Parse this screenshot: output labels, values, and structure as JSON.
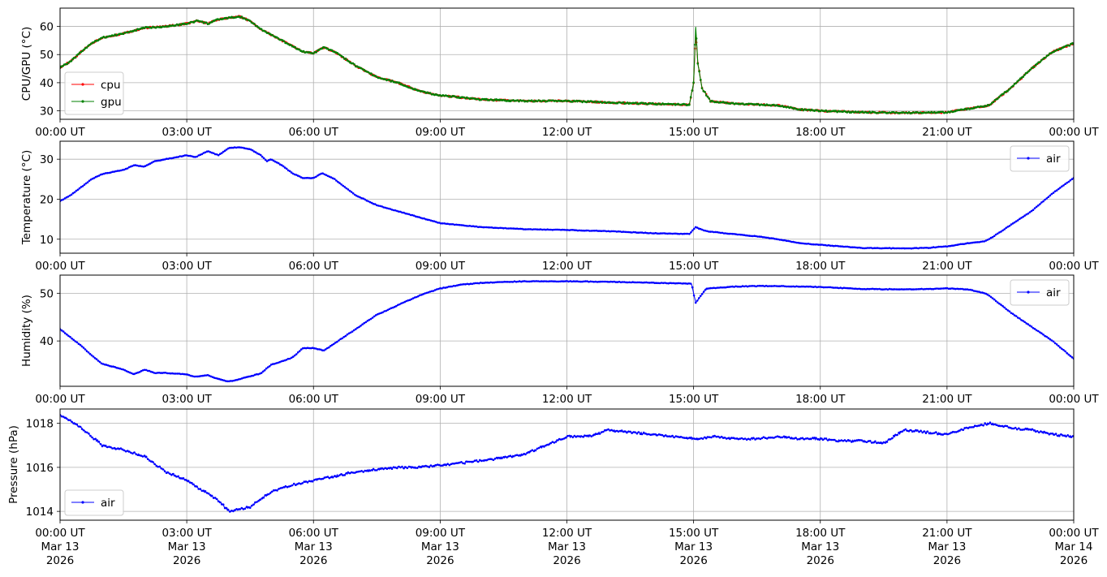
{
  "chart_data": [
    {
      "type": "line",
      "x_unit": "UTC hours since 2026-03-13 00:00",
      "xlim": [
        0,
        24
      ],
      "ylabel": "CPU/GPU (°C)",
      "ylim": [
        27,
        66.5
      ],
      "yticks": [
        30,
        40,
        50,
        60
      ],
      "grid": true,
      "legend": {
        "position": "lower-left",
        "entries": [
          "cpu",
          "gpu"
        ]
      },
      "series": [
        {
          "name": "cpu",
          "color": "#ff0000",
          "points": [
            [
              0,
              45.5
            ],
            [
              0.25,
              47.5
            ],
            [
              0.5,
              51
            ],
            [
              0.75,
              54
            ],
            [
              1,
              56
            ],
            [
              1.5,
              57.5
            ],
            [
              2,
              59.5
            ],
            [
              2.5,
              60
            ],
            [
              3,
              61
            ],
            [
              3.25,
              62
            ],
            [
              3.5,
              61
            ],
            [
              3.75,
              62.5
            ],
            [
              4,
              63
            ],
            [
              4.25,
              63.5
            ],
            [
              4.5,
              62
            ],
            [
              4.75,
              59
            ],
            [
              5,
              57
            ],
            [
              5.5,
              53
            ],
            [
              5.75,
              51
            ],
            [
              6,
              50.5
            ],
            [
              6.25,
              52.5
            ],
            [
              6.5,
              51
            ],
            [
              7,
              46
            ],
            [
              7.5,
              42
            ],
            [
              8,
              40
            ],
            [
              8.5,
              37
            ],
            [
              9,
              35.5
            ],
            [
              10,
              34
            ],
            [
              11,
              33.5
            ],
            [
              12,
              33.5
            ],
            [
              13,
              33
            ],
            [
              14,
              32.5
            ],
            [
              14.9,
              32.2
            ],
            [
              15,
              40
            ],
            [
              15.05,
              58
            ],
            [
              15.1,
              47
            ],
            [
              15.2,
              38
            ],
            [
              15.4,
              33.5
            ],
            [
              16,
              32.5
            ],
            [
              17,
              32
            ],
            [
              17.5,
              30.5
            ],
            [
              18,
              30
            ],
            [
              19,
              29.5
            ],
            [
              20,
              29.3
            ],
            [
              21,
              29.5
            ],
            [
              22,
              32
            ],
            [
              22.5,
              38
            ],
            [
              23,
              45
            ],
            [
              23.5,
              51
            ],
            [
              24,
              54
            ]
          ]
        },
        {
          "name": "gpu",
          "color": "#008000",
          "points": [
            [
              0,
              45.5
            ],
            [
              0.25,
              47.5
            ],
            [
              0.5,
              51
            ],
            [
              0.75,
              54
            ],
            [
              1,
              56
            ],
            [
              1.5,
              57.5
            ],
            [
              2,
              59.5
            ],
            [
              2.5,
              60
            ],
            [
              3,
              61
            ],
            [
              3.25,
              62
            ],
            [
              3.5,
              61
            ],
            [
              3.75,
              62.5
            ],
            [
              4,
              63
            ],
            [
              4.25,
              63.5
            ],
            [
              4.5,
              62
            ],
            [
              4.75,
              59
            ],
            [
              5,
              57
            ],
            [
              5.5,
              53
            ],
            [
              5.75,
              51
            ],
            [
              6,
              50.5
            ],
            [
              6.25,
              52.5
            ],
            [
              6.5,
              51
            ],
            [
              7,
              46
            ],
            [
              7.5,
              42
            ],
            [
              8,
              40
            ],
            [
              8.5,
              37
            ],
            [
              9,
              35.5
            ],
            [
              10,
              34
            ],
            [
              11,
              33.5
            ],
            [
              12,
              33.5
            ],
            [
              13,
              33
            ],
            [
              14,
              32.5
            ],
            [
              14.9,
              32.2
            ],
            [
              15,
              40
            ],
            [
              15.05,
              60
            ],
            [
              15.1,
              47
            ],
            [
              15.2,
              38
            ],
            [
              15.4,
              33.5
            ],
            [
              16,
              32.5
            ],
            [
              17,
              32
            ],
            [
              17.5,
              30.5
            ],
            [
              18,
              30
            ],
            [
              19,
              29.5
            ],
            [
              20,
              29.3
            ],
            [
              21,
              29.5
            ],
            [
              22,
              32
            ],
            [
              22.5,
              38
            ],
            [
              23,
              45
            ],
            [
              23.5,
              51
            ],
            [
              24,
              54
            ]
          ]
        }
      ]
    },
    {
      "type": "line",
      "x_unit": "UTC hours since 2026-03-13 00:00",
      "xlim": [
        0,
        24
      ],
      "ylabel": "Temperature (°C)",
      "ylim": [
        6.5,
        34.5
      ],
      "yticks": [
        10,
        20,
        30
      ],
      "grid": true,
      "legend": {
        "position": "upper-right",
        "entries": [
          "air"
        ]
      },
      "series": [
        {
          "name": "air",
          "color": "#0000ff",
          "points": [
            [
              0,
              19.5
            ],
            [
              0.25,
              21
            ],
            [
              0.5,
              23
            ],
            [
              0.75,
              25
            ],
            [
              1,
              26.3
            ],
            [
              1.5,
              27.3
            ],
            [
              1.75,
              28.5
            ],
            [
              2,
              28.2
            ],
            [
              2.25,
              29.5
            ],
            [
              2.5,
              30
            ],
            [
              3,
              31
            ],
            [
              3.2,
              30.5
            ],
            [
              3.5,
              32
            ],
            [
              3.75,
              31
            ],
            [
              4,
              32.8
            ],
            [
              4.25,
              33
            ],
            [
              4.5,
              32.5
            ],
            [
              4.75,
              31
            ],
            [
              4.9,
              29.5
            ],
            [
              5,
              30
            ],
            [
              5.25,
              28.5
            ],
            [
              5.5,
              26.5
            ],
            [
              5.75,
              25.3
            ],
            [
              6,
              25.3
            ],
            [
              6.2,
              26.5
            ],
            [
              6.5,
              25
            ],
            [
              7,
              21
            ],
            [
              7.5,
              18.5
            ],
            [
              8,
              17
            ],
            [
              8.5,
              15.5
            ],
            [
              9,
              14
            ],
            [
              10,
              13
            ],
            [
              11,
              12.5
            ],
            [
              12,
              12.3
            ],
            [
              13,
              12
            ],
            [
              14,
              11.5
            ],
            [
              14.9,
              11.3
            ],
            [
              15.05,
              13
            ],
            [
              15.3,
              12
            ],
            [
              16,
              11.2
            ],
            [
              16.5,
              10.7
            ],
            [
              17,
              10
            ],
            [
              17.5,
              9
            ],
            [
              18,
              8.6
            ],
            [
              19,
              7.8
            ],
            [
              20,
              7.7
            ],
            [
              20.5,
              7.8
            ],
            [
              21,
              8.2
            ],
            [
              21.5,
              9
            ],
            [
              21.9,
              9.5
            ],
            [
              22,
              10
            ],
            [
              22.5,
              13.5
            ],
            [
              23,
              17
            ],
            [
              23.5,
              21.5
            ],
            [
              24,
              25.3
            ]
          ]
        }
      ]
    },
    {
      "type": "line",
      "x_unit": "UTC hours since 2026-03-13 00:00",
      "xlim": [
        0,
        24
      ],
      "ylabel": "Humidity (%)",
      "ylim": [
        30.5,
        53.8
      ],
      "yticks": [
        40,
        50
      ],
      "grid": true,
      "legend": {
        "position": "upper-right",
        "entries": [
          "air"
        ]
      },
      "series": [
        {
          "name": "air",
          "color": "#0000ff",
          "points": [
            [
              0,
              42.5
            ],
            [
              0.5,
              39
            ],
            [
              0.75,
              37
            ],
            [
              1,
              35.2
            ],
            [
              1.5,
              34
            ],
            [
              1.75,
              33
            ],
            [
              2,
              34
            ],
            [
              2.25,
              33.3
            ],
            [
              2.5,
              33.3
            ],
            [
              3,
              33
            ],
            [
              3.2,
              32.5
            ],
            [
              3.5,
              32.8
            ],
            [
              3.75,
              32
            ],
            [
              4,
              31.5
            ],
            [
              4.25,
              32
            ],
            [
              4.5,
              32.6
            ],
            [
              4.75,
              33.2
            ],
            [
              5,
              35
            ],
            [
              5.5,
              36.5
            ],
            [
              5.75,
              38.5
            ],
            [
              6,
              38.5
            ],
            [
              6.25,
              38
            ],
            [
              6.5,
              39.5
            ],
            [
              7,
              42.5
            ],
            [
              7.5,
              45.5
            ],
            [
              8,
              47.5
            ],
            [
              8.5,
              49.5
            ],
            [
              9,
              51
            ],
            [
              9.5,
              51.8
            ],
            [
              10,
              52.2
            ],
            [
              11,
              52.5
            ],
            [
              12,
              52.5
            ],
            [
              13,
              52.4
            ],
            [
              14,
              52.2
            ],
            [
              14.95,
              52
            ],
            [
              15.05,
              48
            ],
            [
              15.3,
              51
            ],
            [
              16,
              51.4
            ],
            [
              16.5,
              51.5
            ],
            [
              17,
              51.5
            ],
            [
              18,
              51.3
            ],
            [
              19,
              50.9
            ],
            [
              20,
              50.8
            ],
            [
              21,
              51
            ],
            [
              21.5,
              50.8
            ],
            [
              21.9,
              50
            ],
            [
              22,
              49.5
            ],
            [
              22.5,
              46
            ],
            [
              23,
              43
            ],
            [
              23.5,
              40
            ],
            [
              24,
              36.3
            ]
          ]
        }
      ]
    },
    {
      "type": "line",
      "x_unit": "UTC hours since 2026-03-13 00:00",
      "xlim": [
        0,
        24
      ],
      "ylabel": "Pressure (hPa)",
      "ylim": [
        1013.6,
        1018.65
      ],
      "yticks": [
        1014,
        1016,
        1018
      ],
      "grid": true,
      "legend": {
        "position": "lower-left",
        "entries": [
          "air"
        ]
      },
      "series": [
        {
          "name": "air",
          "color": "#0000ff",
          "points": [
            [
              0,
              1018.4
            ],
            [
              0.5,
              1017.8
            ],
            [
              1,
              1017
            ],
            [
              1.5,
              1016.8
            ],
            [
              2,
              1016.5
            ],
            [
              2.5,
              1015.8
            ],
            [
              3,
              1015.4
            ],
            [
              3.5,
              1014.8
            ],
            [
              3.75,
              1014.5
            ],
            [
              4,
              1014
            ],
            [
              4.5,
              1014.2
            ],
            [
              5,
              1014.9
            ],
            [
              5.5,
              1015.2
            ],
            [
              6,
              1015.4
            ],
            [
              7,
              1015.8
            ],
            [
              8,
              1016
            ],
            [
              8.5,
              1016
            ],
            [
              9,
              1016.1
            ],
            [
              10,
              1016.3
            ],
            [
              11,
              1016.6
            ],
            [
              11.5,
              1017
            ],
            [
              12,
              1017.4
            ],
            [
              12.5,
              1017.4
            ],
            [
              13,
              1017.7
            ],
            [
              14,
              1017.5
            ],
            [
              14.5,
              1017.4
            ],
            [
              15,
              1017.3
            ],
            [
              15.5,
              1017.4
            ],
            [
              16,
              1017.3
            ],
            [
              16.5,
              1017.3
            ],
            [
              17,
              1017.4
            ],
            [
              17.5,
              1017.3
            ],
            [
              18,
              1017.3
            ],
            [
              18.5,
              1017.2
            ],
            [
              19,
              1017.2
            ],
            [
              19.5,
              1017.1
            ],
            [
              20,
              1017.7
            ],
            [
              20.5,
              1017.6
            ],
            [
              21,
              1017.5
            ],
            [
              21.5,
              1017.8
            ],
            [
              22,
              1018.0
            ],
            [
              22.5,
              1017.8
            ],
            [
              23,
              1017.7
            ],
            [
              23.5,
              1017.5
            ],
            [
              24,
              1017.4
            ]
          ]
        }
      ]
    }
  ],
  "x_ticks": {
    "values": [
      0,
      3,
      6,
      9,
      12,
      15,
      18,
      21,
      24
    ],
    "time_labels": [
      "00:00 UT",
      "03:00 UT",
      "06:00 UT",
      "09:00 UT",
      "12:00 UT",
      "15:00 UT",
      "18:00 UT",
      "21:00 UT",
      "00:00 UT"
    ],
    "date_labels": [
      "Mar 13",
      "Mar 13",
      "Mar 13",
      "Mar 13",
      "Mar 13",
      "Mar 13",
      "Mar 13",
      "Mar 13",
      "Mar 14"
    ],
    "year_labels": [
      "2026",
      "2026",
      "2026",
      "2026",
      "2026",
      "2026",
      "2026",
      "2026",
      "2026"
    ]
  },
  "colors": {
    "grid": "#b0b0b0",
    "axes": "#000000"
  }
}
